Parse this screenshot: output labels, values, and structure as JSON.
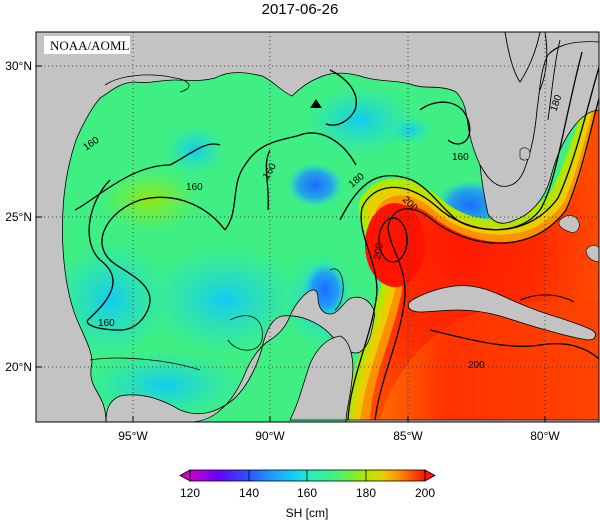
{
  "title": "2017-06-26",
  "credit": "NOAA/AOML",
  "map": {
    "region": "Gulf of Mexico",
    "variable": "Sea Surface Height",
    "lon_range": [
      -98.3,
      -77.9
    ],
    "lat_range": [
      18.0,
      31.1
    ],
    "lon_ticks": [
      {
        "lon": -95,
        "label": "95°W"
      },
      {
        "lon": -90,
        "label": "90°W"
      },
      {
        "lon": -85,
        "label": "85°W"
      },
      {
        "lon": -80,
        "label": "80°W"
      }
    ],
    "lat_ticks": [
      {
        "lat": 30,
        "label": "30°N"
      },
      {
        "lat": 25,
        "label": "25°N"
      },
      {
        "lat": 20,
        "label": "20°N"
      }
    ],
    "contour_interval_cm": 20,
    "contour_labels": [
      "160",
      "160",
      "160",
      "160",
      "160",
      "180",
      "180",
      "200",
      "200",
      "200"
    ],
    "marker": {
      "shape": "triangle",
      "lon": -88.3,
      "lat": 28.7
    }
  },
  "colorbar": {
    "label": "SH [cm]",
    "ticks": [
      "120",
      "140",
      "160",
      "180",
      "200"
    ],
    "range": [
      120,
      200
    ],
    "colors": [
      "#cc00cc",
      "#6a00ff",
      "#2a55ff",
      "#1e9cff",
      "#13d2f0",
      "#2ef0b4",
      "#3cf28c",
      "#6cf03c",
      "#b4e600",
      "#eacf00",
      "#ff9000",
      "#ff4a00",
      "#ff1500"
    ]
  },
  "colors": {
    "land": "#c3c3c3",
    "coast": "#000000",
    "grid": "#2a2a2a"
  }
}
